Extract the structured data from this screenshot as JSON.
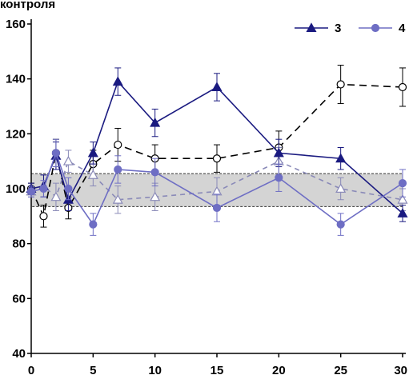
{
  "chart_data": {
    "type": "line",
    "ylabel": "контроля",
    "xlabel": "",
    "ylim": [
      40,
      160
    ],
    "xlim": [
      0,
      30
    ],
    "y_ticks": [
      40,
      60,
      80,
      100,
      120,
      140,
      160
    ],
    "x_ticks": [
      0,
      5,
      10,
      15,
      20,
      25,
      30
    ],
    "x_tick_labels": [
      "0",
      "5",
      "10",
      "15",
      "20",
      "25",
      "30"
    ],
    "y_tick_labels": [
      "40",
      "60",
      "80",
      "100",
      "120",
      "140",
      "160"
    ],
    "grid": false,
    "legend": "top-right",
    "reference_band": {
      "y_low": 93.5,
      "y_high": 105.5,
      "fill": "#d4d4d4",
      "border": "#333333"
    },
    "series": [
      {
        "name": "",
        "marker": "circle-open",
        "color": "#000000",
        "dash": "long",
        "x": [
          0,
          1,
          2,
          3,
          5,
          7,
          10,
          15,
          20,
          25,
          30
        ],
        "y": [
          100,
          90,
          113,
          93,
          109,
          116,
          111,
          111,
          115,
          138,
          137
        ],
        "err": [
          2,
          4,
          5,
          4,
          5,
          6,
          5,
          5,
          6,
          7,
          7
        ]
      },
      {
        "name": "",
        "marker": "triangle-open",
        "color": "#8a8ab8",
        "dash": "medium",
        "x": [
          0,
          1,
          2,
          3,
          5,
          7,
          10,
          15,
          20,
          25,
          30
        ],
        "y": [
          99,
          101,
          97,
          110,
          105,
          96,
          97,
          99,
          110,
          100,
          96
        ],
        "err": [
          2,
          4,
          5,
          4,
          4,
          5,
          5,
          5,
          5,
          4,
          4
        ]
      },
      {
        "name": "3",
        "marker": "triangle-filled",
        "color": "#1a1a80",
        "dash": "solid",
        "x": [
          0,
          1,
          2,
          3,
          5,
          7,
          10,
          15,
          20,
          25,
          30
        ],
        "y": [
          100,
          101,
          112,
          96,
          113,
          139,
          124,
          137,
          113,
          111,
          91
        ],
        "err": [
          2,
          4,
          5,
          4,
          4,
          5,
          5,
          5,
          5,
          4,
          3
        ]
      },
      {
        "name": "4",
        "marker": "circle-filled",
        "color": "#6e6ec4",
        "dash": "solid",
        "x": [
          0,
          1,
          2,
          3,
          5,
          7,
          10,
          15,
          20,
          25,
          30
        ],
        "y": [
          99,
          100,
          113,
          100,
          87,
          107,
          106,
          93,
          104,
          87,
          102
        ],
        "err": [
          2,
          3,
          5,
          4,
          4,
          5,
          5,
          5,
          5,
          4,
          5
        ]
      }
    ]
  }
}
